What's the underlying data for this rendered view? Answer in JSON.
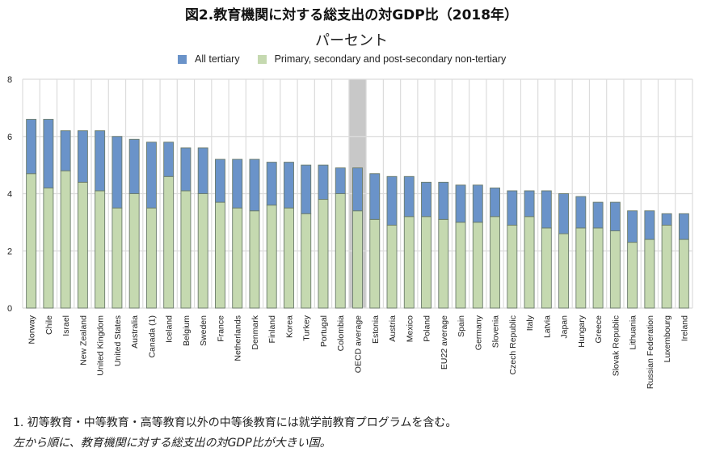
{
  "chart_data": {
    "type": "bar",
    "stacked": true,
    "title": "図2.教育機関に対する総支出の対GDP比（2018年）",
    "subtitle": "パーセント",
    "ylim": [
      0,
      8
    ],
    "yticks": [
      "0",
      "2",
      "4",
      "6",
      "8"
    ],
    "grid": true,
    "legend_position": "top",
    "highlight_category": "OECD average",
    "categories": [
      "Norway",
      "Chile",
      "Israel",
      "New Zealand",
      "United Kingdom",
      "United States",
      "Australia",
      "Canada (1)",
      "Iceland",
      "Belgium",
      "Sweden",
      "France",
      "Netherlands",
      "Denmark",
      "Finland",
      "Korea",
      "Turkey",
      "Portugal",
      "Colombia",
      "OECD average",
      "Estonia",
      "Austria",
      "Mexico",
      "Poland",
      "EU22 average",
      "Spain",
      "Germany",
      "Slovenia",
      "Czech Republic",
      "Italy",
      "Latvia",
      "Japan",
      "Hungary",
      "Greece",
      "Slovak Republic",
      "Lithuania",
      "Russian Federation",
      "Luxembourg",
      "Ireland"
    ],
    "series": [
      {
        "name": "Primary, secondary and post-secondary non-tertiary",
        "color": "#c5d9b0",
        "values": [
          4.7,
          4.2,
          4.8,
          4.4,
          4.1,
          3.5,
          4.0,
          3.5,
          4.6,
          4.1,
          4.0,
          3.7,
          3.5,
          3.4,
          3.6,
          3.5,
          3.3,
          3.8,
          4.0,
          3.4,
          3.1,
          2.9,
          3.2,
          3.2,
          3.1,
          3.0,
          3.0,
          3.2,
          2.9,
          3.2,
          2.8,
          2.6,
          2.8,
          2.8,
          2.7,
          2.3,
          2.4,
          2.9,
          2.4
        ]
      },
      {
        "name": "All tertiary",
        "color": "#6a93c9",
        "values": [
          1.9,
          2.4,
          1.4,
          1.8,
          2.1,
          2.5,
          1.9,
          2.3,
          1.2,
          1.5,
          1.6,
          1.5,
          1.7,
          1.8,
          1.5,
          1.6,
          1.7,
          1.2,
          0.9,
          1.5,
          1.6,
          1.7,
          1.4,
          1.2,
          1.3,
          1.3,
          1.3,
          1.0,
          1.2,
          0.9,
          1.3,
          1.4,
          1.1,
          0.9,
          1.0,
          1.1,
          1.0,
          0.4,
          0.9
        ]
      }
    ]
  },
  "legend": {
    "tertiary": "All tertiary",
    "primary": "Primary, secondary and post-secondary non-tertiary"
  },
  "notes": {
    "note1": "1. 初等教育・中等教育・高等教育以外の中等後教育には就学前教育プログラムを含む。",
    "note2": "左から順に、教育機関に対する総支出の対GDP比が大きい国。"
  }
}
